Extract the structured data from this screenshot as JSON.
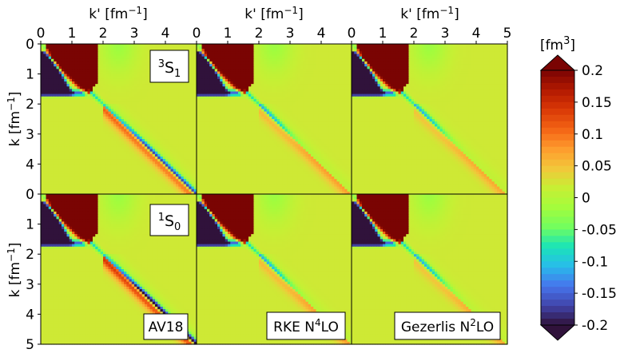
{
  "chart_data": {
    "type": "heatmap",
    "figure_units": "[fm³]",
    "colorbar": {
      "label_base": "[fm",
      "label_sup": "3",
      "label_end": "]",
      "min": -0.2,
      "max": 0.2,
      "ticks": [
        "0.2",
        "0.15",
        "0.1",
        "0.05",
        "0",
        "-0.05",
        "-0.1",
        "-0.15",
        "-0.2"
      ],
      "colors": [
        "#30123b",
        "#4145ab",
        "#4675ed",
        "#28bceb",
        "#1ae4b6",
        "#72fe5e",
        "#a4fc3c",
        "#c7ef34",
        "#f3c63a",
        "#fe9b2d",
        "#f36315",
        "#d93806",
        "#b11901",
        "#7a0403"
      ]
    },
    "xlabel": "k' [fm",
    "xlabel_sup": "−1",
    "xlabel_end": "]",
    "ylabel": "k [fm",
    "ylabel_sup": "−1",
    "ylabel_end": "]",
    "x_range": [
      0,
      5
    ],
    "y_range": [
      0,
      5
    ],
    "x_ticks_panel1": [
      "0",
      "1",
      "2",
      "3",
      "4"
    ],
    "x_ticks_panel2": [
      "0",
      "1",
      "2",
      "3",
      "4"
    ],
    "x_ticks_panel3": [
      "0",
      "1",
      "2",
      "3",
      "4",
      "5"
    ],
    "y_ticks_row1": [
      "0",
      "1",
      "2",
      "3",
      "4"
    ],
    "y_ticks_row2": [
      "0",
      "1",
      "2",
      "3",
      "4",
      "5"
    ],
    "rows": [
      {
        "channel_base": "3",
        "channel_letter": "S",
        "channel_sub": "1"
      },
      {
        "channel_base": "1",
        "channel_letter": "S",
        "channel_sub": "0"
      }
    ],
    "columns": [
      {
        "potential": "AV18",
        "potential_sup": ""
      },
      {
        "potential": "RKE N",
        "potential_sup": "4",
        "potential_end": "LO"
      },
      {
        "potential": "Gezerlis N",
        "potential_sup": "2",
        "potential_end": "LO"
      }
    ]
  }
}
